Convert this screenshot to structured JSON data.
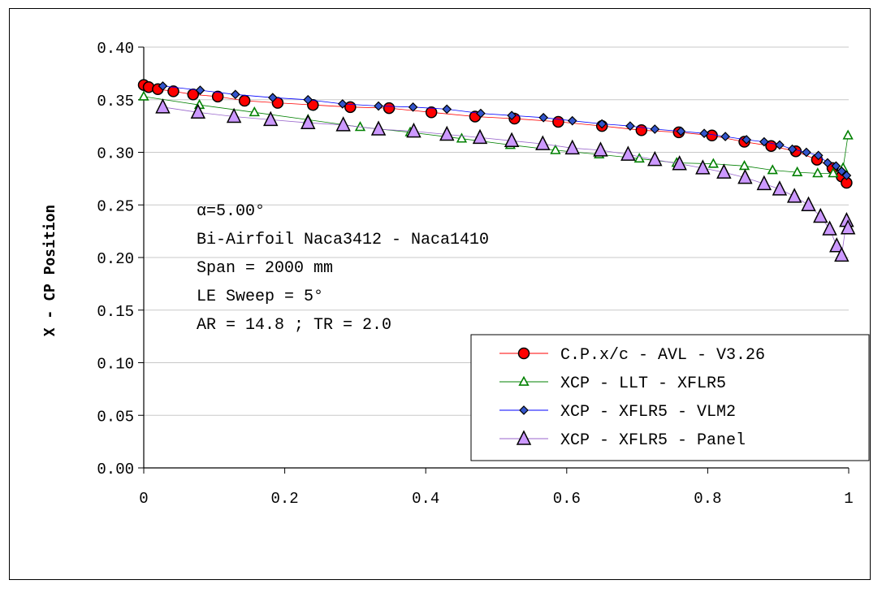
{
  "chart_data": {
    "type": "line",
    "ylabel": "X - CP Position",
    "xlabel": "",
    "xlim": [
      0,
      1
    ],
    "ylim": [
      0,
      0.4
    ],
    "x_ticks": [
      "0",
      "0.2",
      "0.4",
      "0.6",
      "0.8",
      "1"
    ],
    "y_ticks": [
      "0.00",
      "0.05",
      "0.10",
      "0.15",
      "0.20",
      "0.25",
      "0.30",
      "0.35",
      "0.40"
    ],
    "grid": "horizontal",
    "legend_position": "lower-right",
    "annotations": [
      "α=5.00°",
      "Bi-Airfoil Naca3412 - Naca1410",
      "Span = 2000 mm",
      "LE Sweep = 5°",
      "AR = 14.8 ; TR =  2.0"
    ],
    "series": [
      {
        "name": "C.P.x/c - AVL - V3.26",
        "color": "#ff0000",
        "marker": "circle",
        "x": [
          0.0,
          0.007,
          0.02,
          0.042,
          0.07,
          0.105,
          0.143,
          0.19,
          0.24,
          0.293,
          0.348,
          0.408,
          0.47,
          0.526,
          0.588,
          0.65,
          0.706,
          0.759,
          0.806,
          0.852,
          0.89,
          0.925,
          0.955,
          0.977,
          0.99,
          0.997
        ],
        "y": [
          0.364,
          0.362,
          0.36,
          0.358,
          0.355,
          0.353,
          0.349,
          0.347,
          0.345,
          0.343,
          0.342,
          0.338,
          0.334,
          0.332,
          0.329,
          0.325,
          0.321,
          0.319,
          0.316,
          0.31,
          0.306,
          0.301,
          0.293,
          0.285,
          0.277,
          0.271
        ]
      },
      {
        "name": "XCP - LLT - XFLR5",
        "color": "#008000",
        "marker": "triangle-open",
        "x": [
          0.0,
          0.079,
          0.157,
          0.233,
          0.307,
          0.378,
          0.451,
          0.52,
          0.584,
          0.646,
          0.703,
          0.756,
          0.808,
          0.852,
          0.892,
          0.927,
          0.956,
          0.978,
          0.992,
          0.999
        ],
        "y": [
          0.353,
          0.345,
          0.338,
          0.331,
          0.324,
          0.319,
          0.313,
          0.307,
          0.302,
          0.298,
          0.294,
          0.29,
          0.289,
          0.287,
          0.283,
          0.281,
          0.28,
          0.28,
          0.285,
          0.316
        ]
      },
      {
        "name": "XCP - XFLR5 - VLM2",
        "color": "#0000ff",
        "marker": "diamond",
        "x": [
          0.027,
          0.08,
          0.13,
          0.183,
          0.233,
          0.282,
          0.333,
          0.382,
          0.43,
          0.478,
          0.522,
          0.567,
          0.608,
          0.65,
          0.69,
          0.725,
          0.762,
          0.795,
          0.825,
          0.855,
          0.88,
          0.902,
          0.92,
          0.94,
          0.957,
          0.97,
          0.982,
          0.99,
          0.997
        ],
        "y": [
          0.363,
          0.359,
          0.355,
          0.352,
          0.35,
          0.346,
          0.344,
          0.343,
          0.341,
          0.337,
          0.335,
          0.333,
          0.33,
          0.327,
          0.325,
          0.322,
          0.32,
          0.318,
          0.315,
          0.312,
          0.31,
          0.307,
          0.303,
          0.3,
          0.297,
          0.29,
          0.287,
          0.282,
          0.278
        ]
      },
      {
        "name": "XCP - XFLR5 - Panel",
        "color": "#9966cc",
        "fill": "#cc99ff",
        "marker": "triangle",
        "x": [
          0.027,
          0.077,
          0.128,
          0.18,
          0.233,
          0.283,
          0.333,
          0.383,
          0.43,
          0.477,
          0.522,
          0.566,
          0.608,
          0.648,
          0.687,
          0.725,
          0.76,
          0.793,
          0.823,
          0.853,
          0.88,
          0.902,
          0.923,
          0.943,
          0.96,
          0.973,
          0.983,
          0.99,
          0.997,
          0.999
        ],
        "y": [
          0.343,
          0.338,
          0.334,
          0.331,
          0.328,
          0.326,
          0.322,
          0.32,
          0.317,
          0.314,
          0.311,
          0.308,
          0.304,
          0.302,
          0.298,
          0.293,
          0.289,
          0.285,
          0.281,
          0.276,
          0.27,
          0.265,
          0.258,
          0.25,
          0.239,
          0.227,
          0.211,
          0.202,
          0.235,
          0.228
        ]
      }
    ]
  }
}
